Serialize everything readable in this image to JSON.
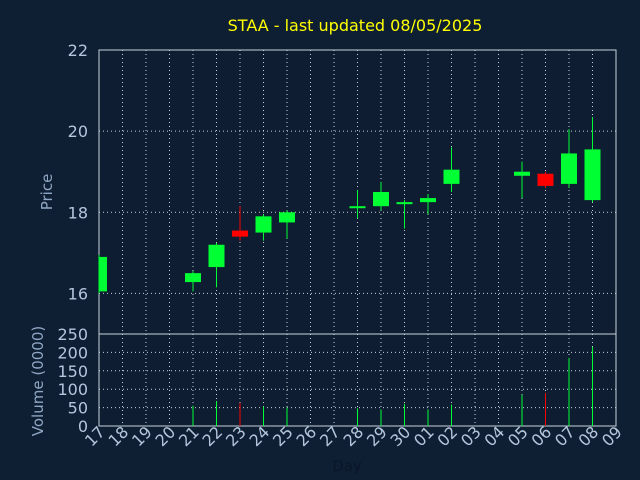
{
  "chart_data": {
    "type": "candlestick",
    "title": "STAA - last updated 08/05/2025",
    "xlabel": "Day",
    "grid": true,
    "x_ticks": [
      "17",
      "18",
      "19",
      "20",
      "21",
      "22",
      "23",
      "24",
      "25",
      "26",
      "27",
      "28",
      "29",
      "30",
      "01",
      "02",
      "03",
      "04",
      "05",
      "06",
      "07",
      "08",
      "09"
    ],
    "price_panel": {
      "ylabel": "Price",
      "ylim": [
        15,
        22
      ],
      "yticks": [
        "16",
        "18",
        "20",
        "22"
      ]
    },
    "volume_panel": {
      "ylabel": "Volume (0000)",
      "ylim": [
        0,
        250
      ],
      "yticks": [
        "0",
        "50",
        "100",
        "150",
        "200",
        "250"
      ]
    },
    "candles": [
      {
        "day": "17",
        "open": 16.05,
        "close": 16.9,
        "high": 16.95,
        "low": 16.0,
        "volume": 0
      },
      {
        "day": "21",
        "open": 16.28,
        "close": 16.5,
        "high": 16.55,
        "low": 16.05,
        "volume": 55
      },
      {
        "day": "22",
        "open": 16.65,
        "close": 17.2,
        "high": 17.25,
        "low": 16.15,
        "volume": 68
      },
      {
        "day": "23",
        "open": 17.55,
        "close": 17.4,
        "high": 18.15,
        "low": 17.3,
        "volume": 63
      },
      {
        "day": "24",
        "open": 17.5,
        "close": 17.9,
        "high": 17.95,
        "low": 17.3,
        "volume": 53
      },
      {
        "day": "25",
        "open": 17.75,
        "close": 18.0,
        "high": 18.05,
        "low": 17.35,
        "volume": 50
      },
      {
        "day": "28",
        "open": 18.1,
        "close": 18.15,
        "high": 18.55,
        "low": 17.85,
        "volume": 48
      },
      {
        "day": "29",
        "open": 18.15,
        "close": 18.5,
        "high": 18.75,
        "low": 18.05,
        "volume": 45
      },
      {
        "day": "30",
        "open": 18.2,
        "close": 18.25,
        "high": 18.3,
        "low": 17.6,
        "volume": 60
      },
      {
        "day": "01",
        "open": 18.25,
        "close": 18.35,
        "high": 18.45,
        "low": 17.95,
        "volume": 45
      },
      {
        "day": "02",
        "open": 18.7,
        "close": 19.05,
        "high": 19.6,
        "low": 18.5,
        "volume": 58
      },
      {
        "day": "05",
        "open": 18.9,
        "close": 19.0,
        "high": 19.25,
        "low": 18.35,
        "volume": 85
      },
      {
        "day": "06",
        "open": 18.95,
        "close": 18.65,
        "high": 19.0,
        "low": 18.6,
        "volume": 90
      },
      {
        "day": "07",
        "open": 18.7,
        "close": 19.45,
        "high": 20.05,
        "low": 18.6,
        "volume": 185
      },
      {
        "day": "08",
        "open": 18.3,
        "close": 19.55,
        "high": 20.35,
        "low": 18.25,
        "volume": 215
      }
    ],
    "colors": {
      "background": "#0f1f33",
      "plot_background": "#0e1d31",
      "up": "#00ff33",
      "down": "#ff0000",
      "grid": "#c8d2dc",
      "title": "#ffff00",
      "axis_text": "#b4c6dc"
    }
  }
}
